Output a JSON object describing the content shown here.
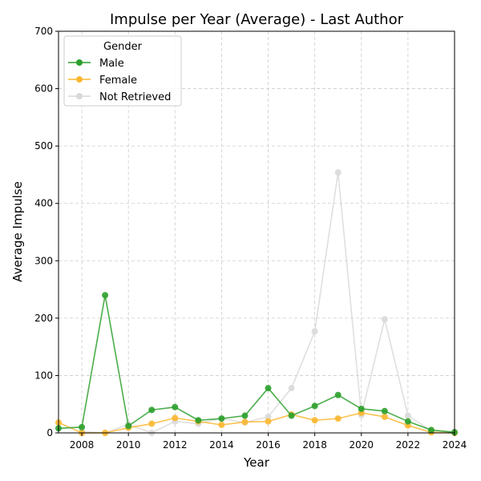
{
  "chart_data": {
    "type": "line",
    "title": "Impulse per Year (Average) - Last Author",
    "xlabel": "Year",
    "ylabel": "Average Impulse",
    "xlim": [
      2007,
      2024
    ],
    "ylim": [
      0,
      700
    ],
    "xticks": [
      2008,
      2010,
      2012,
      2014,
      2016,
      2018,
      2020,
      2022,
      2024
    ],
    "yticks": [
      0,
      100,
      200,
      300,
      400,
      500,
      600,
      700
    ],
    "grid": true,
    "legend": {
      "title": "Gender",
      "placement": "top-left"
    },
    "x": [
      2007,
      2008,
      2009,
      2010,
      2011,
      2012,
      2013,
      2014,
      2015,
      2016,
      2017,
      2018,
      2019,
      2020,
      2021,
      2022,
      2023,
      2024
    ],
    "series": [
      {
        "name": "Male",
        "color": "#2ca02c",
        "values": [
          8,
          10,
          240,
          12,
          40,
          45,
          22,
          25,
          30,
          78,
          30,
          47,
          66,
          42,
          38,
          20,
          5,
          1
        ]
      },
      {
        "name": "Female",
        "color": "#fbb731",
        "values": [
          18,
          0,
          0,
          9,
          16,
          26,
          20,
          14,
          19,
          20,
          32,
          22,
          25,
          35,
          28,
          13,
          1,
          0
        ]
      },
      {
        "name": "Not Retrieved",
        "color": "#d9d9d9",
        "values": [
          null,
          2,
          0,
          15,
          0,
          20,
          16,
          25,
          18,
          28,
          78,
          177,
          454,
          31,
          198,
          30,
          4,
          2
        ]
      }
    ]
  }
}
